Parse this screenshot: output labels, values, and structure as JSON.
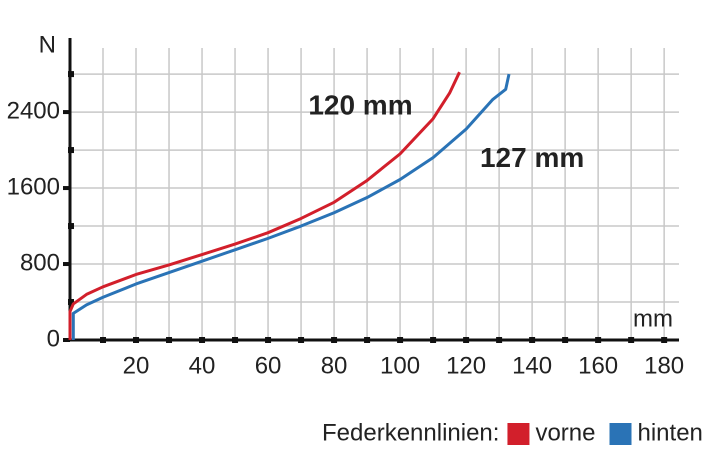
{
  "chart_data": {
    "type": "line",
    "y_unit": "N",
    "x_unit": "mm",
    "xlim": [
      0,
      184.5
    ],
    "ylim": [
      0,
      3180
    ],
    "xticks": [
      20,
      40,
      60,
      80,
      100,
      120,
      140,
      160,
      180
    ],
    "x_minor_ticks": [
      10,
      30,
      50,
      70,
      90,
      110,
      130,
      150,
      170
    ],
    "yticks": [
      0,
      800,
      1600,
      2400
    ],
    "y_minor_ticks": [
      400,
      1200,
      2000,
      2800
    ],
    "grid": true,
    "legend_title": "Federkennlinien:",
    "series": [
      {
        "name": "vorne",
        "color": "#d21f2b",
        "x": [
          0,
          0,
          1,
          5,
          10,
          20,
          30,
          40,
          50,
          60,
          70,
          80,
          90,
          100,
          110,
          115,
          118
        ],
        "values": [
          0,
          300,
          380,
          480,
          560,
          690,
          790,
          900,
          1010,
          1130,
          1280,
          1450,
          1680,
          1960,
          2330,
          2600,
          2820
        ]
      },
      {
        "name": "hinten",
        "color": "#2a73b6",
        "x": [
          1,
          1,
          5,
          10,
          20,
          30,
          40,
          50,
          60,
          70,
          80,
          90,
          100,
          110,
          120,
          128,
          132,
          133
        ],
        "values": [
          0,
          280,
          370,
          450,
          590,
          710,
          830,
          950,
          1070,
          1200,
          1340,
          1500,
          1690,
          1920,
          2220,
          2530,
          2640,
          2800
        ]
      }
    ],
    "annotations": [
      {
        "text": "120 mm",
        "x": 88,
        "y": 2450
      },
      {
        "text": "127 mm",
        "x": 140,
        "y": 1900
      }
    ]
  }
}
